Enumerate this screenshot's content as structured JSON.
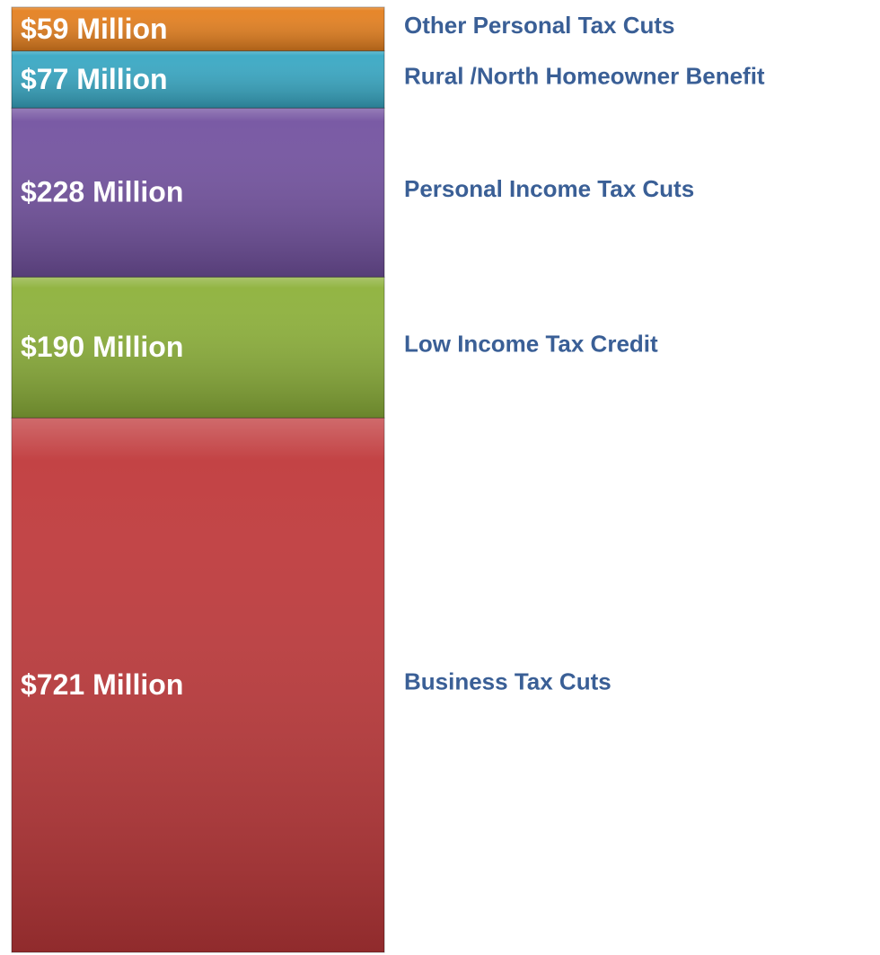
{
  "chart_data": {
    "type": "stacked_bar",
    "series": [
      {
        "name": "Business Tax Cuts",
        "color": "#c0393b",
        "values": [
          721
        ],
        "value_labels": [
          "$721 Million"
        ]
      },
      {
        "name": "Low Income Tax Credit",
        "color": "#8db13a",
        "values": [
          190
        ],
        "value_labels": [
          "$190 Million"
        ]
      },
      {
        "name": "Personal Income Tax Cuts",
        "color": "#7352a0",
        "values": [
          228
        ],
        "value_labels": [
          "$228 Million"
        ]
      },
      {
        "name": "Rural /North Homeowner Benefit",
        "color": "#38a8c4",
        "values": [
          77
        ],
        "value_labels": [
          "$77 Million"
        ]
      },
      {
        "name": "Other Personal Tax Cuts",
        "color": "#e5801f",
        "values": [
          59
        ],
        "value_labels": [
          "$59 Million"
        ]
      }
    ]
  }
}
